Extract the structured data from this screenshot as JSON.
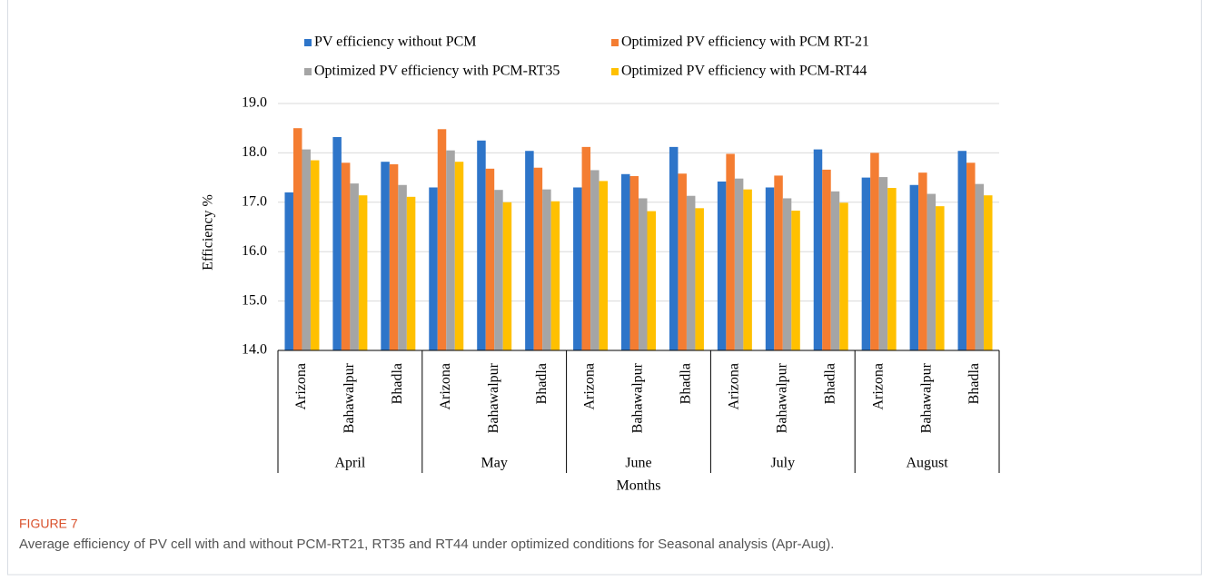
{
  "figure_label": "FIGURE 7",
  "caption": "Average efficiency of PV cell with and without PCM-RT21, RT35 and RT44 under optimized conditions for Seasonal analysis (Apr-Aug).",
  "chart_data": {
    "type": "bar",
    "ylabel": "Efficiency %",
    "xlabel": "Months",
    "categories": [
      "Arizona",
      "Bahawalpur",
      "Bhadla",
      "Arizona",
      "Bahawalpur",
      "Bhadla",
      "Arizona",
      "Bahawalpur",
      "Bhadla",
      "Arizona",
      "Bahawalpur",
      "Bhadla",
      "Arizona",
      "Bahawalpur",
      "Bhadla"
    ],
    "groups": [
      "April",
      "May",
      "June",
      "July",
      "August"
    ],
    "ylim": [
      14,
      19
    ],
    "yticks": [
      {
        "value": 14,
        "label": "14.0"
      },
      {
        "value": 15,
        "label": "15.0"
      },
      {
        "value": 16,
        "label": "16.0"
      },
      {
        "value": 17,
        "label": "17.0"
      },
      {
        "value": 18,
        "label": "18.0"
      },
      {
        "value": 19,
        "label": "19.0"
      }
    ],
    "grid": true,
    "series": [
      {
        "name": "PV efficiency without PCM",
        "color": "#2e75c9",
        "values": [
          17.2,
          18.32,
          17.82,
          17.3,
          18.25,
          18.04,
          17.3,
          17.57,
          18.12,
          17.42,
          17.3,
          18.07,
          17.5,
          17.35,
          18.04
        ]
      },
      {
        "name": "Optimized PV efficiency with PCM RT-21",
        "color": "#f47d32",
        "values": [
          18.5,
          17.8,
          17.77,
          18.48,
          17.68,
          17.7,
          18.12,
          17.53,
          17.58,
          17.98,
          17.54,
          17.66,
          18.0,
          17.6,
          17.8
        ]
      },
      {
        "name": "Optimized PV efficiency with PCM-RT35",
        "color": "#a5a5a5",
        "values": [
          18.07,
          17.38,
          17.35,
          18.05,
          17.25,
          17.26,
          17.65,
          17.08,
          17.13,
          17.48,
          17.08,
          17.22,
          17.51,
          17.17,
          17.37
        ]
      },
      {
        "name": "Optimized PV efficiency with PCM-RT44",
        "color": "#ffc000",
        "values": [
          17.85,
          17.14,
          17.11,
          17.82,
          17.0,
          17.02,
          17.43,
          16.82,
          16.88,
          17.26,
          16.83,
          16.99,
          17.29,
          16.92,
          17.14
        ]
      }
    ]
  }
}
